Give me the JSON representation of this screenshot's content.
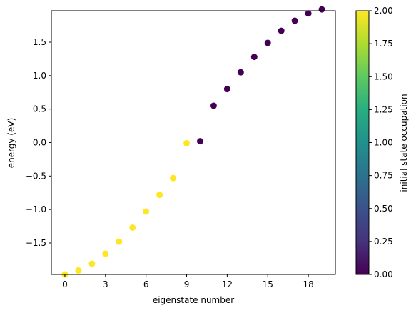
{
  "chart_data": {
    "type": "scatter",
    "title": "",
    "xlabel": "eigenstate number",
    "ylabel": "energy (eV)",
    "xlim": [
      -1,
      20
    ],
    "ylim": [
      -1.97,
      1.97
    ],
    "xticks": [
      0,
      3,
      6,
      9,
      12,
      15,
      18
    ],
    "xtick_labels": [
      "0",
      "3",
      "6",
      "9",
      "12",
      "15",
      "18"
    ],
    "yticks": [
      -1.5,
      -1.0,
      -0.5,
      0.0,
      0.5,
      1.0,
      1.5
    ],
    "ytick_labels": [
      "−1.5",
      "−1.0",
      "−0.5",
      "0.0",
      "0.5",
      "1.0",
      "1.5"
    ],
    "grid": false,
    "points": [
      {
        "x": 0,
        "y": -1.97,
        "c": 2
      },
      {
        "x": 1,
        "y": -1.91,
        "c": 2
      },
      {
        "x": 2,
        "y": -1.81,
        "c": 2
      },
      {
        "x": 3,
        "y": -1.66,
        "c": 2
      },
      {
        "x": 4,
        "y": -1.48,
        "c": 2
      },
      {
        "x": 5,
        "y": -1.27,
        "c": 2
      },
      {
        "x": 6,
        "y": -1.03,
        "c": 2
      },
      {
        "x": 7,
        "y": -0.78,
        "c": 2
      },
      {
        "x": 8,
        "y": -0.53,
        "c": 2
      },
      {
        "x": 9,
        "y": -0.01,
        "c": 2
      },
      {
        "x": 10,
        "y": 0.02,
        "c": 0
      },
      {
        "x": 11,
        "y": 0.55,
        "c": 0
      },
      {
        "x": 12,
        "y": 0.8,
        "c": 0
      },
      {
        "x": 13,
        "y": 1.05,
        "c": 0
      },
      {
        "x": 14,
        "y": 1.28,
        "c": 0
      },
      {
        "x": 15,
        "y": 1.49,
        "c": 0
      },
      {
        "x": 16,
        "y": 1.67,
        "c": 0
      },
      {
        "x": 17,
        "y": 1.82,
        "c": 0
      },
      {
        "x": 18,
        "y": 1.93,
        "c": 0
      },
      {
        "x": 19,
        "y": 1.99,
        "c": 0
      }
    ],
    "colorbar": {
      "label": "initial state occupation",
      "colormap": "viridis",
      "range": [
        0,
        2
      ],
      "ticks": [
        0,
        0.25,
        0.5,
        0.75,
        1.0,
        1.25,
        1.5,
        1.75,
        2.0
      ],
      "tick_labels": [
        "0.00",
        "0.25",
        "0.50",
        "0.75",
        "1.00",
        "1.25",
        "1.50",
        "1.75",
        "2.00"
      ]
    },
    "colors": {
      "low": "#440154",
      "high": "#fde725"
    }
  }
}
